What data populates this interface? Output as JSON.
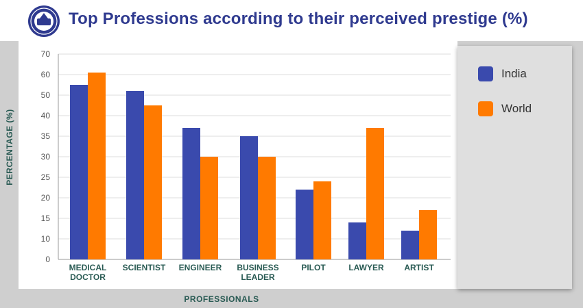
{
  "header": {
    "title": "Top Professions according to their perceived prestige (%)",
    "logo_icon": "emblem-logo-icon"
  },
  "colors": {
    "title": "#2f3a8f",
    "india": "#3a4aad",
    "world": "#ff7a00",
    "axis_text": "#2a5b54",
    "tick_text": "#555555"
  },
  "chart_data": {
    "type": "bar",
    "xlabel": "PROFESSIONALS",
    "ylabel": "PERCENTAGE (%)",
    "y_ticks": [
      0,
      10,
      15,
      20,
      25,
      30,
      35,
      40,
      50,
      60,
      70
    ],
    "categories": [
      "MEDICAL DOCTOR",
      "SCIENTIST",
      "ENGINEER",
      "BUSINESS LEADER",
      "PILOT",
      "LAWYER",
      "ARTIST"
    ],
    "series": [
      {
        "name": "India",
        "values": [
          55,
          52,
          37,
          35,
          22,
          14,
          12
        ]
      },
      {
        "name": "World",
        "values": [
          61,
          45,
          30,
          30,
          24,
          37,
          17
        ]
      }
    ],
    "grid": true,
    "legend_position": "right"
  }
}
